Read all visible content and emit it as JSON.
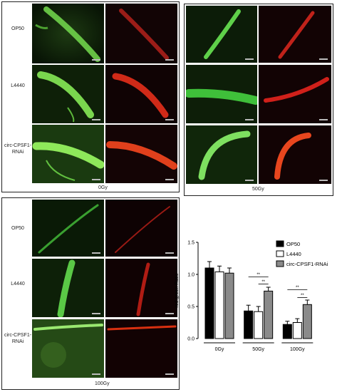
{
  "panels": [
    {
      "dose": "0Gy",
      "rows": [
        "OP50",
        "L4440",
        "circ-CPSF1-RNAi"
      ]
    },
    {
      "dose": "50Gy",
      "rows": [
        "",
        "",
        ""
      ]
    },
    {
      "dose": "100Gy",
      "rows": [
        "OP50",
        "L4440",
        "circ-CPSF1-\nRNAi"
      ]
    }
  ],
  "chart_data": {
    "type": "bar",
    "categories": [
      "0Gy",
      "50Gy",
      "100Gy"
    ],
    "series": [
      {
        "name": "OP50",
        "color": "#000000",
        "values": [
          1.1,
          0.43,
          0.22
        ],
        "errors": [
          0.1,
          0.09,
          0.05
        ]
      },
      {
        "name": "L4440",
        "color": "#ffffff",
        "values": [
          1.04,
          0.42,
          0.25
        ],
        "errors": [
          0.09,
          0.08,
          0.06
        ]
      },
      {
        "name": "circ-CPSF1-RNAi",
        "color": "#8a8a8a",
        "values": [
          1.02,
          0.74,
          0.53
        ],
        "errors": [
          0.08,
          0.06,
          0.07
        ]
      }
    ],
    "ylabel": "red:green Ratio",
    "xlabel": "",
    "ylim": [
      0,
      1.5
    ],
    "yticks": [
      "0.0",
      "0.5",
      "1.0",
      "1.5"
    ],
    "significance": [
      {
        "category": "50Gy",
        "label": "**"
      },
      {
        "category": "50Gy",
        "label": "**"
      },
      {
        "category": "100Gy",
        "label": "**"
      },
      {
        "category": "100Gy",
        "label": "**"
      }
    ],
    "legend_position": "top-right",
    "grid": false
  }
}
